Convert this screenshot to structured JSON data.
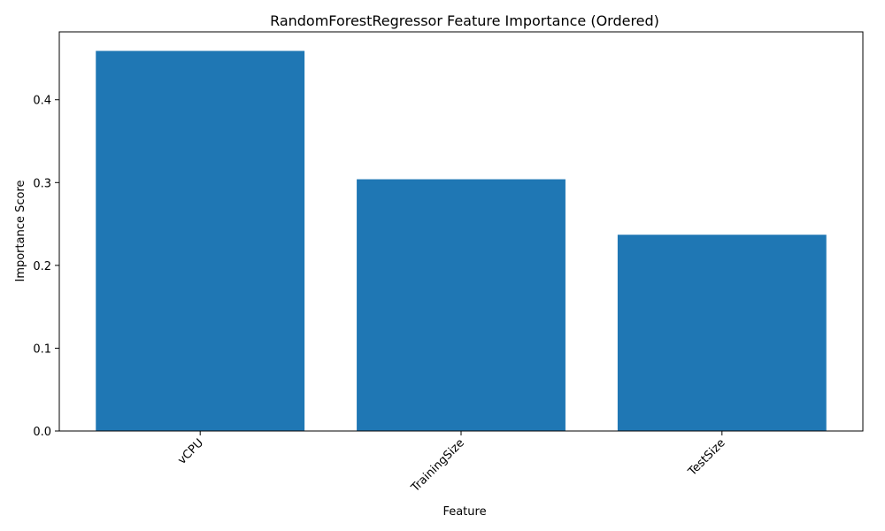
{
  "chart_data": {
    "type": "bar",
    "title": "RandomForestRegressor Feature Importance (Ordered)",
    "xlabel": "Feature",
    "ylabel": "Importance Score",
    "categories": [
      "vCPU",
      "TrainingSize",
      "TestSize"
    ],
    "values": [
      0.459,
      0.304,
      0.237
    ],
    "ylim": [
      0,
      0.482
    ],
    "yticks": [
      "0.0",
      "0.1",
      "0.2",
      "0.3",
      "0.4"
    ],
    "bar_color": "#1f77b4",
    "grid": false,
    "legend": "none",
    "x_tick_rotation": "45 degrees"
  }
}
